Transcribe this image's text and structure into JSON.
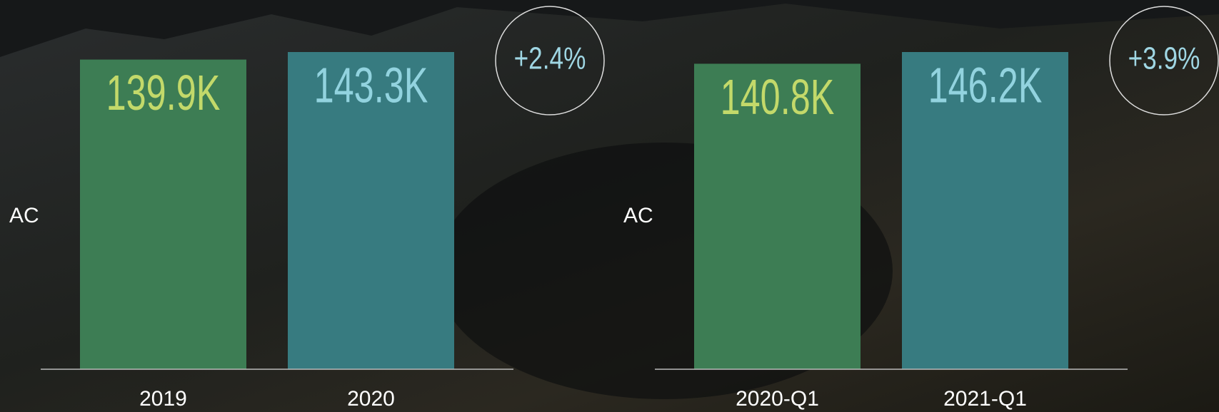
{
  "chart_data": [
    {
      "type": "bar",
      "y_label": "AC",
      "annotation": "+2.4%",
      "categories": [
        "2019",
        "2020"
      ],
      "values": [
        139900,
        143300
      ],
      "value_labels": [
        "139.9K",
        "143.3K"
      ],
      "colors": [
        "#3d7d54",
        "#377b80"
      ],
      "label_colors": [
        "#c3d96a",
        "#92d3df"
      ]
    },
    {
      "type": "bar",
      "y_label": "AC",
      "annotation": "+3.9%",
      "categories": [
        "2020-Q1",
        "2021-Q1"
      ],
      "values": [
        140800,
        146200
      ],
      "value_labels": [
        "140.8K",
        "146.2K"
      ],
      "colors": [
        "#3d7d54",
        "#377b80"
      ],
      "label_colors": [
        "#c3d96a",
        "#92d3df"
      ]
    }
  ]
}
